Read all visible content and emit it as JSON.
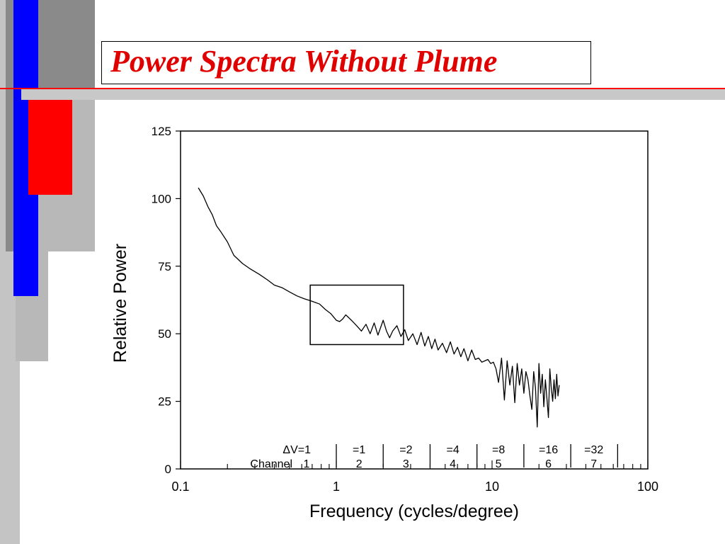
{
  "slide": {
    "title": "Power Spectra Without Plume",
    "colors": {
      "title": "#e00000",
      "accent_red": "#ff0000",
      "accent_blue": "#0000ff",
      "gray": "#b8b8b8"
    }
  },
  "chart_data": {
    "type": "line",
    "title": "",
    "xlabel": "Frequency (cycles/degree)",
    "ylabel": "Relative Power",
    "xscale": "log",
    "xlim": [
      0.1,
      100
    ],
    "ylim": [
      0,
      125
    ],
    "xticks": [
      0.1,
      1,
      10,
      100
    ],
    "xtick_labels": [
      "0.1",
      "1",
      "10",
      "100"
    ],
    "yticks": [
      0,
      25,
      50,
      75,
      100,
      125
    ],
    "ytick_labels": [
      "0",
      "25",
      "50",
      "75",
      "100",
      "125"
    ],
    "grid": false,
    "series": [
      {
        "x": [
          0.13,
          0.14,
          0.15,
          0.16,
          0.17,
          0.18,
          0.2,
          0.22,
          0.25,
          0.28,
          0.32,
          0.36,
          0.4,
          0.45,
          0.5,
          0.56,
          0.62,
          0.7,
          0.78,
          0.85,
          0.92,
          1.0,
          1.05,
          1.1,
          1.15,
          1.25,
          1.35,
          1.45,
          1.55,
          1.65,
          1.75,
          1.85,
          2.0,
          2.1,
          2.2,
          2.3,
          2.45,
          2.6,
          2.75,
          2.9,
          3.1,
          3.3,
          3.5,
          3.7,
          3.9,
          4.1,
          4.3,
          4.5,
          4.8,
          5.1,
          5.4,
          5.7,
          6.0,
          6.3,
          6.6,
          7.0,
          7.4,
          7.8,
          8.2,
          8.6,
          9.0,
          9.4,
          9.8,
          10.2,
          10.6,
          11.0,
          11.5,
          12.0,
          12.5,
          13.0,
          13.5,
          14.0,
          14.5,
          15.0,
          15.5,
          16.0,
          16.5,
          17.0,
          17.5,
          18.0,
          18.5,
          19.0,
          19.5,
          20.0,
          20.5,
          21.0,
          21.5,
          22.0,
          22.5,
          23.0,
          23.5,
          24.0,
          24.5,
          25.0,
          25.5,
          26.0,
          26.5,
          27.0
        ],
        "y": [
          104,
          101,
          97,
          94,
          90,
          88,
          84,
          79,
          76,
          74,
          72,
          70,
          68,
          67,
          65.5,
          64,
          63,
          62,
          61,
          59,
          57.5,
          55,
          54.5,
          55.5,
          57,
          55,
          53,
          51,
          53.5,
          50,
          54,
          49.5,
          55,
          51,
          48.5,
          51,
          53,
          49,
          51.5,
          47.5,
          50,
          46,
          50.5,
          45.5,
          49,
          44.5,
          48,
          44,
          46.5,
          43,
          47,
          42.5,
          45,
          41.5,
          44.5,
          40,
          44,
          40.5,
          41,
          39.5,
          40,
          40.5,
          39,
          39.5,
          37,
          32,
          41,
          25.5,
          40,
          31,
          38,
          24.5,
          39,
          31,
          37,
          28,
          36,
          33,
          27,
          22,
          36,
          30,
          15.5,
          39,
          28,
          35,
          23,
          33,
          26,
          19,
          37,
          30,
          25,
          33,
          26,
          35,
          27,
          31
        ]
      }
    ],
    "annotations": {
      "dv_label": "ΔV=1",
      "channel_label": "Channel",
      "bands": [
        {
          "dv": "",
          "channel": "1",
          "x_center": 0.72
        },
        {
          "dv": "=1",
          "channel": "2",
          "x_center": 1.4
        },
        {
          "dv": "=2",
          "channel": "3",
          "x_center": 2.8
        },
        {
          "dv": "=4",
          "channel": "4",
          "x_center": 5.6
        },
        {
          "dv": "=8",
          "channel": "5",
          "x_center": 11
        },
        {
          "dv": "=16",
          "channel": "6",
          "x_center": 23
        },
        {
          "dv": "=32",
          "channel": "7",
          "x_center": 45
        }
      ],
      "band_separators": [
        1,
        2,
        4,
        8,
        16,
        32,
        64
      ],
      "highlight_box": {
        "x0": 0.68,
        "x1": 2.7,
        "y0": 46,
        "y1": 68
      }
    }
  }
}
